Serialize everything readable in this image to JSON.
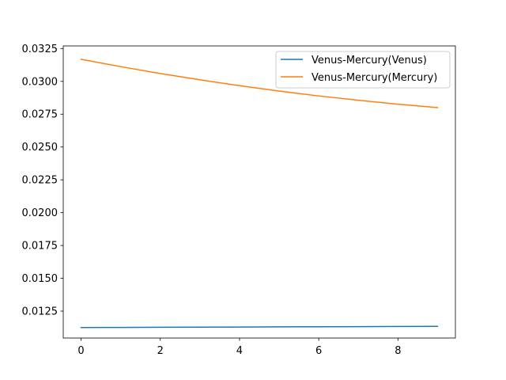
{
  "chart_data": {
    "type": "line",
    "title": "",
    "xlabel": "",
    "ylabel": "",
    "x": [
      0,
      1,
      2,
      3,
      4,
      5,
      6,
      7,
      8,
      9
    ],
    "xlim": [
      -0.45,
      9.45
    ],
    "ylim": [
      0.01045,
      0.0327
    ],
    "xticks": [
      0,
      2,
      4,
      6,
      8
    ],
    "xtick_labels": [
      "0",
      "2",
      "4",
      "6",
      "8"
    ],
    "yticks": [
      0.0125,
      0.015,
      0.0175,
      0.02,
      0.0225,
      0.025,
      0.0275,
      0.03,
      0.0325
    ],
    "ytick_labels": [
      "0.0125",
      "0.0150",
      "0.0175",
      "0.0200",
      "0.0225",
      "0.0250",
      "0.0275",
      "0.0300",
      "0.0325"
    ],
    "grid": false,
    "legend_position": "upper right",
    "series": [
      {
        "name": "Venus-Mercury(Venus)",
        "color": "#1f77b4",
        "values": [
          0.01125,
          0.01126,
          0.01127,
          0.01128,
          0.01129,
          0.0113,
          0.01131,
          0.01132,
          0.01133,
          0.01134
        ]
      },
      {
        "name": "Venus-Mercury(Mercury)",
        "color": "#ff7f0e",
        "values": [
          0.03168,
          0.03112,
          0.0306,
          0.03012,
          0.02967,
          0.02926,
          0.02889,
          0.02856,
          0.02826,
          0.028
        ]
      }
    ]
  }
}
